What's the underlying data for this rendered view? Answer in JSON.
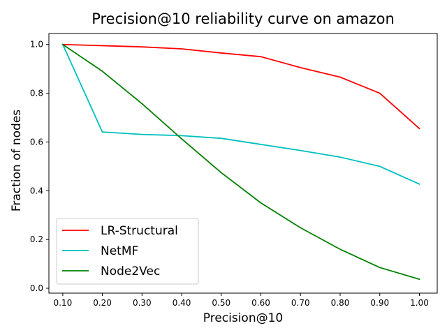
{
  "chart_data": {
    "type": "line",
    "title": "Precision@10 reliability curve on amazon",
    "xlabel": "Precision@10",
    "ylabel": "Fraction of nodes",
    "x": [
      0.1,
      0.2,
      0.3,
      0.4,
      0.5,
      0.6,
      0.7,
      0.8,
      0.9,
      1.0
    ],
    "xticks": [
      "0.10",
      "0.20",
      "0.30",
      "0.40",
      "0.50",
      "0.60",
      "0.70",
      "0.80",
      "0.90",
      "1.00"
    ],
    "yticks": [
      "0.0",
      "0.2",
      "0.4",
      "0.6",
      "0.8",
      "1.0"
    ],
    "xlim": [
      0.065,
      1.045
    ],
    "ylim": [
      -0.02,
      1.045
    ],
    "grid": false,
    "legend_position": "bottom-left",
    "series": [
      {
        "name": "LR-Structural",
        "color": "#ff0000",
        "values": [
          1.0,
          0.995,
          0.99,
          0.982,
          0.965,
          0.95,
          0.905,
          0.866,
          0.8,
          0.655
        ]
      },
      {
        "name": "NetMF",
        "color": "#00bfbf",
        "values": [
          1.0,
          0.641,
          0.631,
          0.626,
          0.615,
          0.59,
          0.565,
          0.538,
          0.5,
          0.427
        ]
      },
      {
        "name": "Node2Vec",
        "color": "#008000",
        "values": [
          1.0,
          0.89,
          0.757,
          0.613,
          0.474,
          0.35,
          0.248,
          0.16,
          0.085,
          0.037
        ]
      }
    ]
  }
}
